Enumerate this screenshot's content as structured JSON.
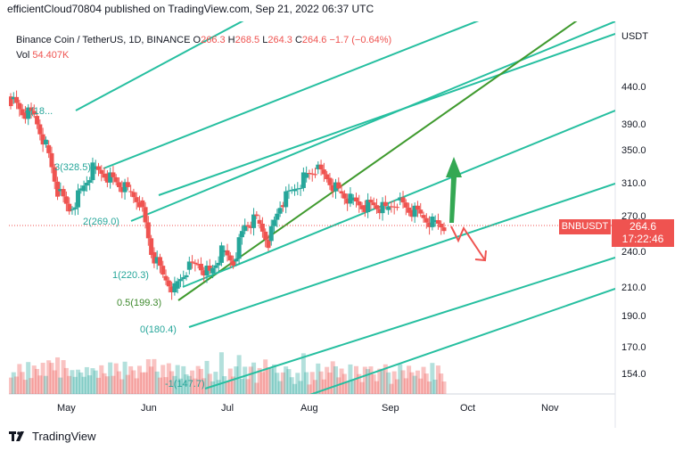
{
  "header": {
    "publisher": "efficientCloud70804 published on TradingView.com, Sep 21, 2022 06:37 UTC"
  },
  "legend": {
    "symbol": "Binance Coin / TetherUS, 1D, BINANCE",
    "o_label": "O",
    "o": "266.3",
    "h_label": "H",
    "h": "268.5",
    "l_label": "L",
    "l": "264.3",
    "c_label": "C",
    "c": "264.6",
    "change": "−1.7 (−0.64%)",
    "vol_label": "Vol",
    "vol": "54.407K"
  },
  "price_axis": {
    "currency": "USDT",
    "ticks": [
      "440.0",
      "390.0",
      "350.0",
      "310.0",
      "270.0",
      "240.0",
      "210.0",
      "190.0",
      "170.0",
      "154.0"
    ]
  },
  "time_axis": {
    "ticks": [
      "May",
      "Jun",
      "Jul",
      "Aug",
      "Sep",
      "Oct",
      "Nov"
    ]
  },
  "price_tag": {
    "symbol": "BNBUSDT",
    "price": "264.6",
    "countdown": "17:22:46"
  },
  "fib_labels": [
    "4(18...",
    "3(328.5)",
    "2(269.0)",
    "1(220.3)",
    "0.5(199.3)",
    "0(180.4)",
    "-1(147.7)"
  ],
  "brand": {
    "name": "TradingView"
  },
  "colors": {
    "up": "#26a69a",
    "down": "#ef5350",
    "channel": "#26bfa0",
    "median": "#3f9a2e",
    "arrow_up": "#34a853",
    "arrow_down": "#ef5350"
  },
  "chart_data": {
    "type": "candlestick",
    "title": "Binance Coin / TetherUS, 1D, BINANCE",
    "ylabel": "USDT",
    "scale": "log",
    "ylim": [
      140,
      560
    ],
    "series": [
      {
        "x": "Apr 25",
        "close": 420
      },
      {
        "x": "May 1",
        "close": 400
      },
      {
        "x": "May 5",
        "close": 395
      },
      {
        "x": "May 8",
        "close": 355
      },
      {
        "x": "May 10",
        "close": 300
      },
      {
        "x": "May 12",
        "close": 280
      },
      {
        "x": "May 15",
        "close": 300
      },
      {
        "x": "May 20",
        "close": 325
      },
      {
        "x": "May 25",
        "close": 320
      },
      {
        "x": "May 30",
        "close": 310
      },
      {
        "x": "Jun 5",
        "close": 300
      },
      {
        "x": "Jun 10",
        "close": 290
      },
      {
        "x": "Jun 13",
        "close": 240
      },
      {
        "x": "Jun 15",
        "close": 220
      },
      {
        "x": "Jun 18",
        "close": 210
      },
      {
        "x": "Jun 22",
        "close": 225
      },
      {
        "x": "Jun 27",
        "close": 230
      },
      {
        "x": "Jul 2",
        "close": 222
      },
      {
        "x": "Jul 8",
        "close": 240
      },
      {
        "x": "Jul 12",
        "close": 232
      },
      {
        "x": "Jul 18",
        "close": 265
      },
      {
        "x": "Jul 22",
        "close": 270
      },
      {
        "x": "Jul 26",
        "close": 250
      },
      {
        "x": "Jul 30",
        "close": 285
      },
      {
        "x": "Aug 5",
        "close": 300
      },
      {
        "x": "Aug 10",
        "close": 315
      },
      {
        "x": "Aug 15",
        "close": 325
      },
      {
        "x": "Aug 19",
        "close": 315
      },
      {
        "x": "Aug 22",
        "close": 300
      },
      {
        "x": "Aug 26",
        "close": 290
      },
      {
        "x": "Aug 30",
        "close": 285
      },
      {
        "x": "Sep 3",
        "close": 285
      },
      {
        "x": "Sep 7",
        "close": 280
      },
      {
        "x": "Sep 10",
        "close": 290
      },
      {
        "x": "Sep 13",
        "close": 280
      },
      {
        "x": "Sep 16",
        "close": 275
      },
      {
        "x": "Sep 19",
        "close": 268
      },
      {
        "x": "Sep 21",
        "close": 264.6
      }
    ]
  }
}
